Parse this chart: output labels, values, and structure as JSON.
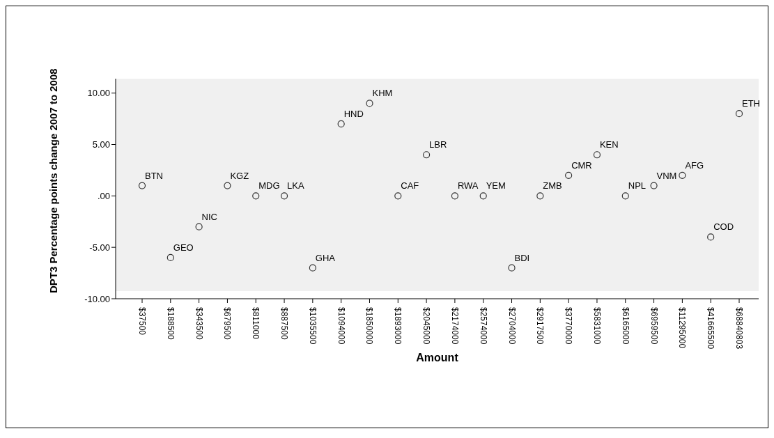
{
  "chart_data": {
    "type": "scatter",
    "xlabel": "Amount",
    "ylabel": "DPT3 Percentage points change 2007 to 2008",
    "categories": [
      "$37500",
      "$188500",
      "$343500",
      "$679500",
      "$811000",
      "$887500",
      "$1035500",
      "$1094000",
      "$1850000",
      "$1893000",
      "$2045000",
      "$2174000",
      "$2574000",
      "$2704000",
      "$2917500",
      "$3770000",
      "$5831000",
      "$6165000",
      "$6959500",
      "$11295000",
      "$41665500",
      "$68840803"
    ],
    "values": [
      1,
      -6,
      -3,
      1,
      0,
      0,
      -7,
      7,
      9,
      0,
      4,
      0,
      0,
      -7,
      0,
      2,
      4,
      0,
      1,
      2,
      -4,
      8
    ],
    "color": "#333333",
    "marker": "circle",
    "grid": false,
    "legend": false,
    "ylim": [
      -10,
      11.4
    ],
    "yticks": [
      {
        "value": -10,
        "label": "-10.00"
      },
      {
        "value": -5,
        "label": "-5.00"
      },
      {
        "value": 0,
        "label": ".00"
      },
      {
        "value": 5,
        "label": "5.00"
      },
      {
        "value": 10,
        "label": "10.00"
      }
    ],
    "annotations": [
      {
        "text": "BTN",
        "x": "$37500",
        "y": 1
      },
      {
        "text": "GEO",
        "x": "$188500",
        "y": -6
      },
      {
        "text": "NIC",
        "x": "$343500",
        "y": -3
      },
      {
        "text": "KGZ",
        "x": "$679500",
        "y": 1
      },
      {
        "text": "MDG",
        "x": "$811000",
        "y": 0
      },
      {
        "text": "LKA",
        "x": "$887500",
        "y": 0
      },
      {
        "text": "GHA",
        "x": "$1035500",
        "y": -7
      },
      {
        "text": "HND",
        "x": "$1094000",
        "y": 7
      },
      {
        "text": "KHM",
        "x": "$1850000",
        "y": 9
      },
      {
        "text": "CAF",
        "x": "$1893000",
        "y": 0
      },
      {
        "text": "LBR",
        "x": "$2045000",
        "y": 4
      },
      {
        "text": "RWA",
        "x": "$2174000",
        "y": 0
      },
      {
        "text": "YEM",
        "x": "$2574000",
        "y": 0
      },
      {
        "text": "BDI",
        "x": "$2704000",
        "y": -7
      },
      {
        "text": "ZMB",
        "x": "$2917500",
        "y": 0
      },
      {
        "text": "CMR",
        "x": "$3770000",
        "y": 2
      },
      {
        "text": "KEN",
        "x": "$5831000",
        "y": 4
      },
      {
        "text": "NPL",
        "x": "$6165000",
        "y": 0
      },
      {
        "text": "VNM",
        "x": "$6959500",
        "y": 1
      },
      {
        "text": "AFG",
        "x": "$11295000",
        "y": 2
      },
      {
        "text": "COD",
        "x": "$41665500",
        "y": -4
      },
      {
        "text": "ETH",
        "x": "$68840803",
        "y": 8
      }
    ]
  }
}
